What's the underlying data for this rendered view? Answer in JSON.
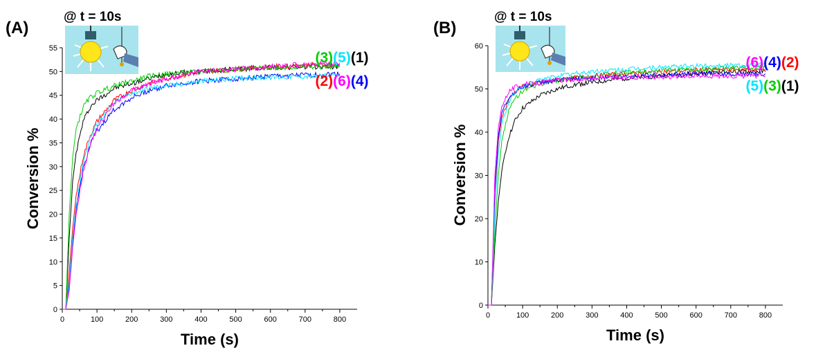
{
  "chart_data": [
    {
      "type": "line",
      "panel_label": "(A)",
      "annotation": "@ t = 10s",
      "xlabel": "Time (s)",
      "ylabel": "Conversion %",
      "xlim": [
        0,
        850
      ],
      "ylim": [
        0,
        55
      ],
      "xticks": [
        0,
        100,
        200,
        300,
        400,
        500,
        600,
        700,
        800
      ],
      "yticks": [
        0,
        5,
        10,
        15,
        20,
        25,
        30,
        35,
        40,
        45,
        50,
        55
      ],
      "grid": false,
      "legend_rows": [
        [
          "(3)",
          "(5)",
          "(1)"
        ],
        [
          "(2)",
          "(6)",
          "(4)"
        ]
      ],
      "series": [
        {
          "name": "(1)",
          "color": "#000000",
          "x": [
            0,
            10,
            20,
            30,
            40,
            60,
            80,
            100,
            150,
            200,
            250,
            300,
            400,
            500,
            600,
            700,
            800
          ],
          "y": [
            0,
            0,
            15,
            27,
            33,
            39.5,
            42.5,
            44,
            46.5,
            47.5,
            48.5,
            49.5,
            50,
            50.5,
            50.8,
            51,
            51
          ]
        },
        {
          "name": "(2)",
          "color": "#ff0000",
          "x": [
            0,
            10,
            20,
            30,
            40,
            60,
            80,
            100,
            150,
            200,
            250,
            300,
            400,
            500,
            600,
            700,
            800
          ],
          "y": [
            0,
            0,
            8,
            17,
            24,
            32,
            36.5,
            39.5,
            44,
            46,
            47.5,
            48.5,
            50,
            50.5,
            51,
            51.3,
            51.5
          ]
        },
        {
          "name": "(3)",
          "color": "#00cc00",
          "x": [
            0,
            10,
            20,
            30,
            40,
            60,
            80,
            100,
            150,
            200,
            250,
            300,
            400,
            500,
            600,
            700,
            800
          ],
          "y": [
            0,
            0,
            20,
            32,
            38,
            42.5,
            44.5,
            45.5,
            47,
            48,
            49,
            49.5,
            50,
            50.5,
            50.8,
            51,
            51
          ]
        },
        {
          "name": "(4)",
          "color": "#0000ff",
          "x": [
            0,
            10,
            20,
            30,
            40,
            60,
            80,
            100,
            150,
            200,
            250,
            300,
            400,
            500,
            600,
            700,
            800
          ],
          "y": [
            0,
            0,
            5,
            14,
            21,
            29.5,
            34.5,
            37.5,
            42,
            44.5,
            46,
            47,
            48,
            48.5,
            49,
            49.2,
            49.5
          ]
        },
        {
          "name": "(5)",
          "color": "#00e5ff",
          "x": [
            0,
            10,
            20,
            30,
            40,
            60,
            80,
            100,
            150,
            200,
            250,
            300,
            400,
            500,
            600,
            700,
            800
          ],
          "y": [
            0,
            0,
            6,
            15,
            22,
            31,
            36,
            39,
            43.5,
            45.5,
            46.5,
            47,
            48,
            48.5,
            48.8,
            49,
            49
          ]
        },
        {
          "name": "(6)",
          "color": "#ff00ff",
          "x": [
            0,
            10,
            20,
            30,
            40,
            60,
            80,
            100,
            150,
            200,
            250,
            300,
            400,
            500,
            600,
            700,
            800
          ],
          "y": [
            0,
            0,
            4,
            13,
            20,
            29,
            34.5,
            38,
            43.5,
            46,
            47.5,
            48.5,
            50,
            50.5,
            51,
            51.5,
            51.8
          ]
        }
      ]
    },
    {
      "type": "line",
      "panel_label": "(B)",
      "annotation": "@ t = 10s",
      "xlabel": "Time (s)",
      "ylabel": "Conversion %",
      "xlim": [
        0,
        850
      ],
      "ylim": [
        0,
        60
      ],
      "xticks": [
        0,
        100,
        200,
        300,
        400,
        500,
        600,
        700,
        800
      ],
      "yticks": [
        0,
        10,
        20,
        30,
        40,
        50,
        60
      ],
      "grid": false,
      "legend_rows": [
        [
          "(6)",
          "(4)",
          "(2)"
        ],
        [
          "(5)",
          "(3)",
          "(1)"
        ]
      ],
      "series": [
        {
          "name": "(1)",
          "color": "#000000",
          "x": [
            0,
            10,
            20,
            30,
            40,
            60,
            80,
            100,
            150,
            200,
            250,
            300,
            400,
            500,
            600,
            700,
            800
          ],
          "y": [
            0,
            0,
            14,
            24,
            31,
            39,
            43,
            45.5,
            48.5,
            50,
            51,
            51.5,
            52.5,
            53,
            53.5,
            54,
            54
          ]
        },
        {
          "name": "(2)",
          "color": "#ff0000",
          "x": [
            0,
            10,
            20,
            30,
            40,
            60,
            80,
            100,
            150,
            200,
            250,
            300,
            400,
            500,
            600,
            700,
            800
          ],
          "y": [
            0,
            0,
            26,
            38,
            43.5,
            47.5,
            49.5,
            50.5,
            51.5,
            52,
            52.5,
            53,
            53.5,
            54,
            54.3,
            54.5,
            54.5
          ]
        },
        {
          "name": "(3)",
          "color": "#00cc00",
          "x": [
            0,
            10,
            20,
            30,
            40,
            60,
            80,
            100,
            150,
            200,
            250,
            300,
            400,
            500,
            600,
            700,
            800
          ],
          "y": [
            0,
            0,
            17,
            30,
            38,
            45,
            48,
            49.5,
            51,
            52,
            52.5,
            53,
            53.8,
            54.3,
            54.5,
            54.8,
            55
          ]
        },
        {
          "name": "(4)",
          "color": "#0000ff",
          "x": [
            0,
            10,
            20,
            30,
            40,
            60,
            80,
            100,
            150,
            200,
            250,
            300,
            400,
            500,
            600,
            700,
            800
          ],
          "y": [
            0,
            0,
            27,
            39,
            44.5,
            48,
            49.5,
            50.5,
            51.5,
            52,
            52.3,
            52.5,
            53,
            53.3,
            53.5,
            53.5,
            53.5
          ]
        },
        {
          "name": "(5)",
          "color": "#00e5ff",
          "x": [
            0,
            10,
            20,
            30,
            40,
            60,
            80,
            100,
            150,
            200,
            250,
            300,
            400,
            500,
            600,
            700,
            800
          ],
          "y": [
            0,
            0,
            22,
            35,
            42,
            47,
            49.5,
            50.5,
            52,
            53,
            53.5,
            54,
            54.5,
            55,
            55.3,
            55.5,
            55.5
          ]
        },
        {
          "name": "(6)",
          "color": "#ff00ff",
          "x": [
            0,
            10,
            20,
            30,
            40,
            60,
            80,
            100,
            150,
            200,
            250,
            300,
            400,
            500,
            600,
            700,
            800
          ],
          "y": [
            0,
            0,
            30,
            41,
            46,
            49.5,
            50.5,
            51,
            51.5,
            52,
            52.2,
            52.4,
            52.6,
            52.8,
            53,
            53,
            53
          ]
        }
      ]
    }
  ],
  "legend_colors": {
    "(1)": "#000000",
    "(2)": "#ff0000",
    "(3)": "#00cc00",
    "(4)": "#0000ff",
    "(5)": "#00e5ff",
    "(6)": "#ff00ff"
  },
  "inset_icon": "light-bulb-switch-icon"
}
